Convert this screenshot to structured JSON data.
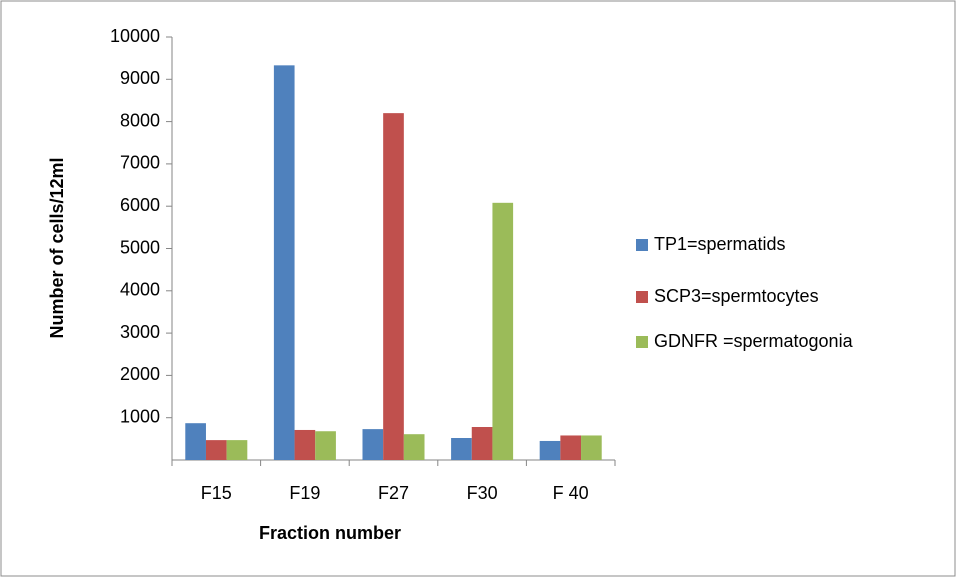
{
  "chart_data": {
    "type": "bar",
    "x_label": "Fraction number",
    "y_label": "Number of cells/12ml",
    "categories": [
      "F15",
      "F19",
      "F27",
      "F30",
      "F 40"
    ],
    "series": [
      {
        "name": "TP1=spermatids",
        "color": "#4f81bd",
        "values": [
          870,
          9330,
          730,
          520,
          450
        ]
      },
      {
        "name": "SCP3=spermtocytes",
        "color": "#c0504d",
        "values": [
          470,
          710,
          8200,
          780,
          580
        ]
      },
      {
        "name": "GDNFR =spermatogonia",
        "color": "#9bbb59",
        "values": [
          470,
          680,
          610,
          6080,
          580
        ]
      }
    ],
    "ylim": [
      0,
      10000
    ],
    "yticks": [
      1000,
      2000,
      3000,
      4000,
      5000,
      6000,
      7000,
      8000,
      9000,
      10000
    ],
    "legend": "right"
  }
}
